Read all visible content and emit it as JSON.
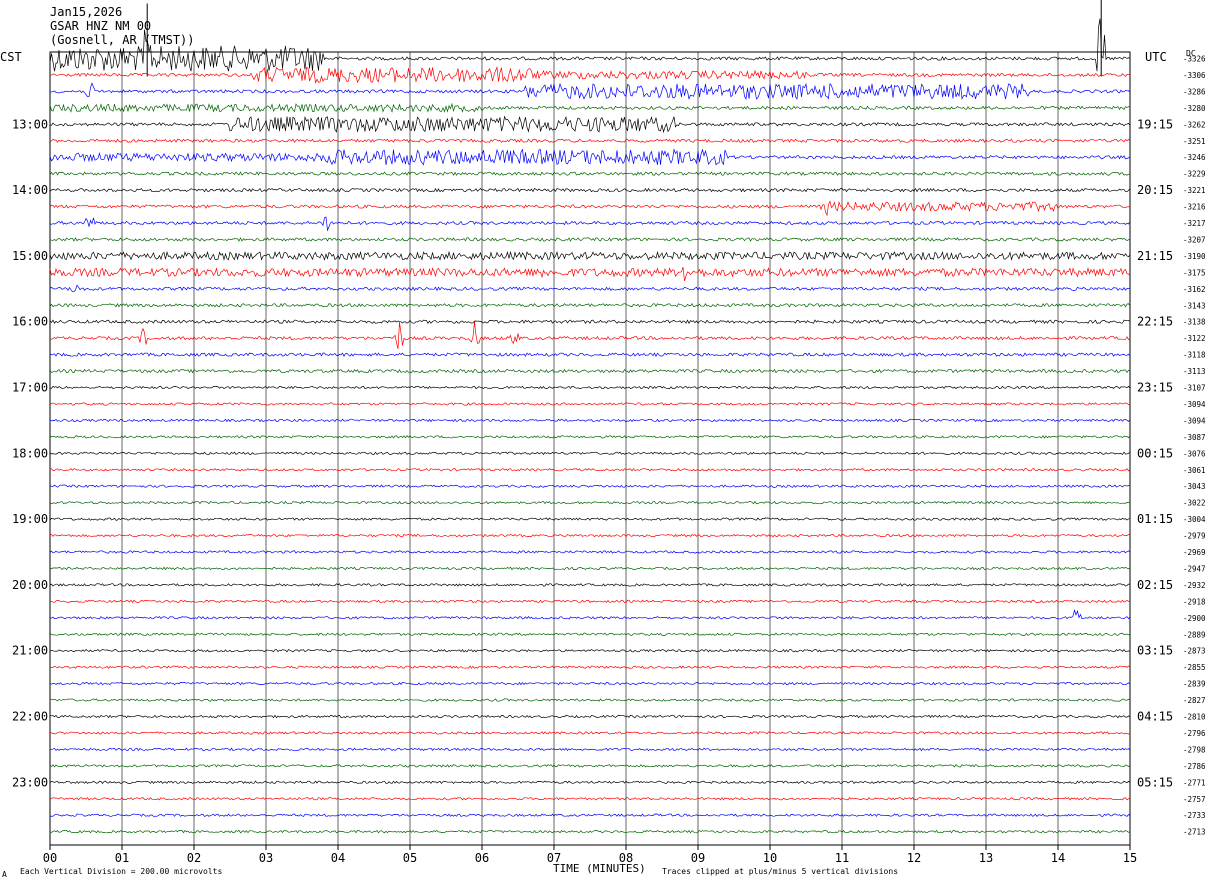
{
  "header": {
    "date": "Jan15,2026",
    "station": "GSAR HNZ NM 00",
    "location": "(Gosnell, AR (TMST))"
  },
  "left_timezone": "CST",
  "right_timezone": "UTC",
  "dc_label": "DC",
  "footer": {
    "scale_note": "Each Vertical Division =  200.00 microvolts",
    "clip_note": "Traces clipped at plus/minus 5 vertical divisions",
    "corner_mark": "A"
  },
  "chart_data": {
    "type": "line",
    "title": "",
    "xlabel": "TIME (MINUTES)",
    "ylabel": "",
    "xlim": [
      0,
      15
    ],
    "x_ticks": [
      "00",
      "01",
      "02",
      "03",
      "04",
      "05",
      "06",
      "07",
      "08",
      "09",
      "10",
      "11",
      "12",
      "13",
      "14",
      "15"
    ],
    "grid": "vertical lines at each minute",
    "trace_colors": [
      "#000000",
      "#ff0000",
      "#0000ff",
      "#006400"
    ],
    "left_hour_labels": [
      "13:00",
      "14:00",
      "15:00",
      "16:00",
      "17:00",
      "18:00",
      "19:00",
      "20:00",
      "21:00",
      "22:00",
      "23:00"
    ],
    "right_hour_labels": [
      "19:15",
      "20:15",
      "21:15",
      "22:15",
      "23:15",
      "00:15",
      "01:15",
      "02:15",
      "03:15",
      "04:15",
      "05:15"
    ],
    "dc_offsets": [
      "-3326",
      "-3306",
      "-3286",
      "-3280",
      "-3262",
      "-3251",
      "-3246",
      "-3229",
      "-3221",
      "-3216",
      "-3217",
      "-3207",
      "-3190",
      "-3175",
      "-3162",
      "-3143",
      "-3138",
      "-3122",
      "-3118",
      "-3113",
      "-3107",
      "-3094",
      "-3094",
      "-3087",
      "-3076",
      "-3061",
      "-3043",
      "-3022",
      "-3004",
      "-2979",
      "-2969",
      "-2947",
      "-2932",
      "-2918",
      "-2900",
      "-2889",
      "-2873",
      "-2855",
      "-2839",
      "-2827",
      "-2810",
      "-2796",
      "-2798",
      "-2786",
      "-2771",
      "-2757",
      "-2733",
      "-2713"
    ],
    "trace_count": 48,
    "noise_events": [
      {
        "trace": 0,
        "start_min": 0.0,
        "end_min": 3.8,
        "level": 5
      },
      {
        "trace": 1,
        "start_min": 2.8,
        "end_min": 6.7,
        "level": 3
      },
      {
        "trace": 1,
        "start_min": 6.7,
        "end_min": 10.5,
        "level": 1.6
      },
      {
        "trace": 2,
        "start_min": 6.6,
        "end_min": 13.6,
        "level": 3
      },
      {
        "trace": 3,
        "start_min": 0.0,
        "end_min": 6.0,
        "level": 1.5
      },
      {
        "trace": 4,
        "start_min": 2.5,
        "end_min": 8.7,
        "level": 3
      },
      {
        "trace": 6,
        "start_min": 3.8,
        "end_min": 9.4,
        "level": 3
      },
      {
        "trace": 6,
        "start_min": 0.0,
        "end_min": 3.8,
        "level": 1.6
      },
      {
        "trace": 9,
        "start_min": 10.7,
        "end_min": 14.0,
        "level": 1.8
      },
      {
        "trace": 12,
        "start_min": 0.0,
        "end_min": 15.0,
        "level": 1.5
      },
      {
        "trace": 13,
        "start_min": 0.0,
        "end_min": 15.0,
        "level": 1.6
      }
    ],
    "spikes": [
      {
        "trace": 0,
        "min": 1.35,
        "amp": 55
      },
      {
        "trace": 0,
        "min": 14.6,
        "amp": 60
      },
      {
        "trace": 2,
        "min": 0.55,
        "amp": 14
      },
      {
        "trace": 10,
        "min": 0.55,
        "amp": 18
      },
      {
        "trace": 10,
        "min": 3.85,
        "amp": 16
      },
      {
        "trace": 9,
        "min": 10.8,
        "amp": 10
      },
      {
        "trace": 13,
        "min": 6.85,
        "amp": 10
      },
      {
        "trace": 13,
        "min": 8.8,
        "amp": 14
      },
      {
        "trace": 14,
        "min": 0.35,
        "amp": 10
      },
      {
        "trace": 17,
        "min": 1.3,
        "amp": 12
      },
      {
        "trace": 17,
        "min": 4.85,
        "amp": 22
      },
      {
        "trace": 17,
        "min": 5.9,
        "amp": 18
      },
      {
        "trace": 17,
        "min": 6.45,
        "amp": 14
      },
      {
        "trace": 34,
        "min": 14.25,
        "amp": 16
      }
    ]
  }
}
